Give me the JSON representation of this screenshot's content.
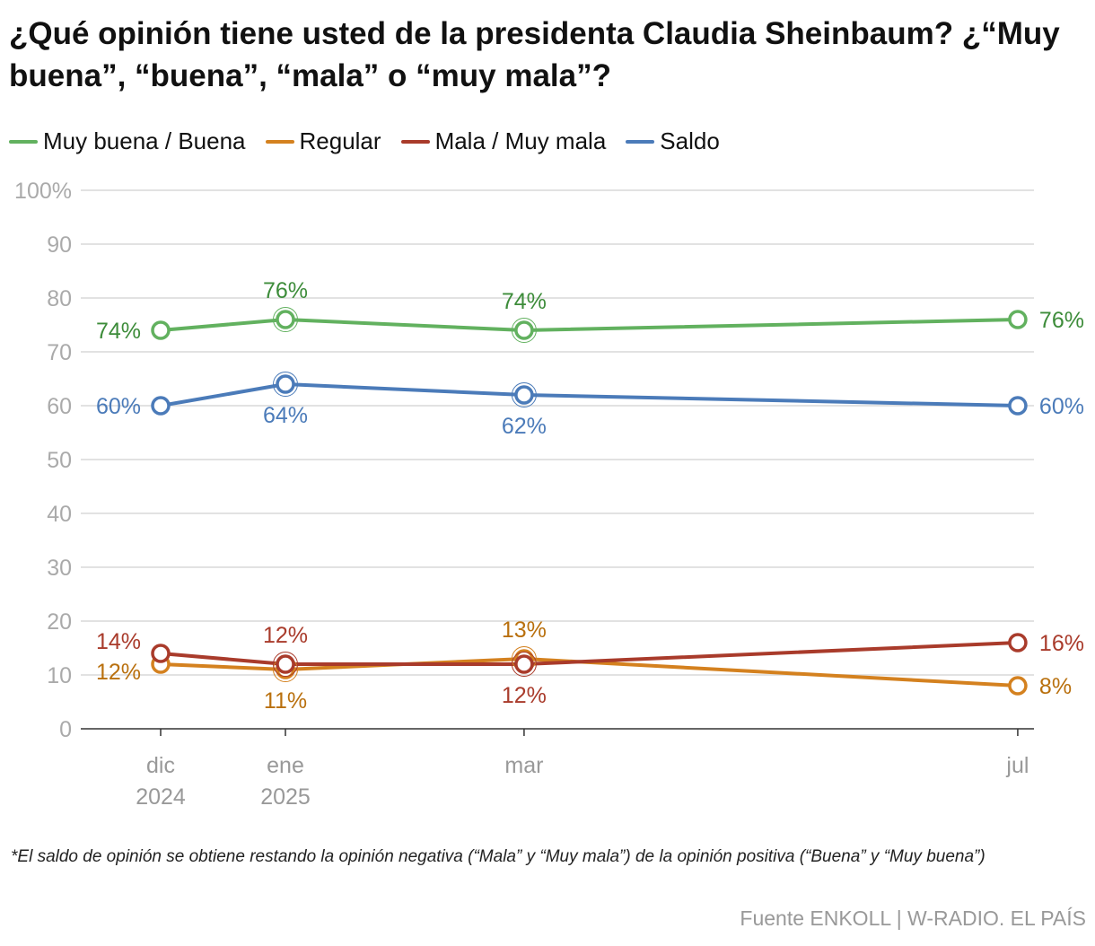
{
  "title": "¿Qué opinión tiene usted de la presidenta Claudia Sheinbaum? ¿“Muy buena”, “buena”, “mala” o “muy mala”?",
  "note": "*El saldo de opinión se obtiene restando la opinión negativa (“Mala” y “Muy mala”) de la opinión positiva (“Buena” y “Muy buena”)",
  "source": "Fuente ENKOLL | W-RADIO. EL PAÍS",
  "chart_data": {
    "type": "line",
    "title": "¿Qué opinión tiene usted de la presidenta Claudia Sheinbaum?",
    "categories": [
      [
        "dic",
        "2024"
      ],
      [
        "ene",
        "2025"
      ],
      [
        "mar",
        ""
      ],
      [
        "jul",
        ""
      ]
    ],
    "x": [
      0,
      1,
      2.913,
      6.87
    ],
    "ylim": [
      0,
      100
    ],
    "yticks": [
      "0",
      "10",
      "20",
      "30",
      "40",
      "50",
      "60",
      "70",
      "80",
      "90",
      "100%"
    ],
    "grid": true,
    "legend_position": "top-left",
    "series": [
      {
        "name": "Muy buena / Buena",
        "color": "#62b15f",
        "label_color": "#3d8c3a",
        "values": [
          74,
          76,
          74,
          76
        ],
        "labels": [
          "74%",
          "76%",
          "74%",
          "76%"
        ]
      },
      {
        "name": "Regular",
        "color": "#d4811f",
        "label_color": "#b9700e",
        "values": [
          12,
          11,
          13,
          8
        ],
        "labels": [
          "12%",
          "11%",
          "13%",
          "8%"
        ]
      },
      {
        "name": "Mala / Muy mala",
        "color": "#a93b2b",
        "label_color": "#a93b2b",
        "values": [
          14,
          12,
          12,
          16
        ],
        "labels": [
          "14%",
          "12%",
          "12%",
          "16%"
        ]
      },
      {
        "name": "Saldo",
        "color": "#4b7bb9",
        "label_color": "#4b7bb9",
        "values": [
          60,
          64,
          62,
          60
        ],
        "labels": [
          "60%",
          "64%",
          "62%",
          "60%"
        ]
      }
    ]
  }
}
